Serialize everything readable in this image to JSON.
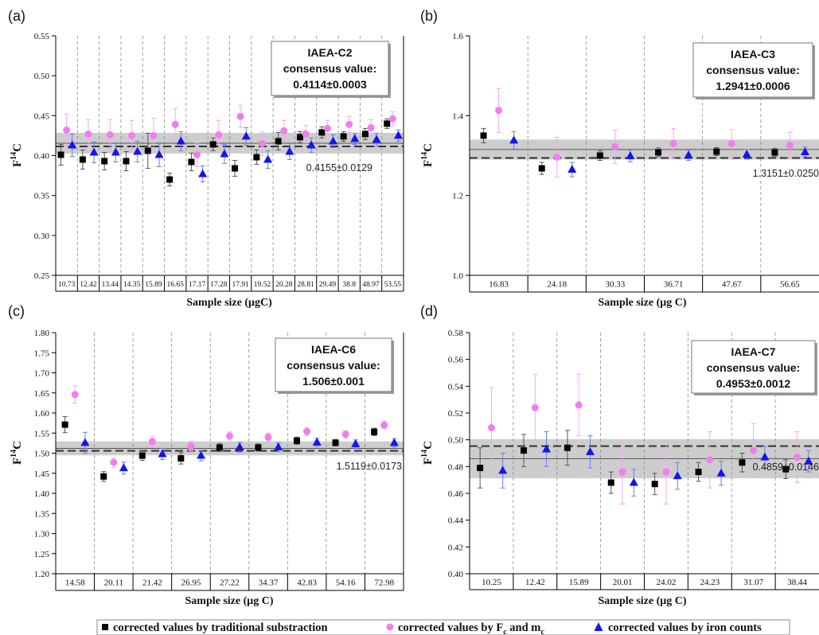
{
  "legend": {
    "items": [
      {
        "label": "corrected values by traditional substraction",
        "marker": "square",
        "color": "#000000"
      },
      {
        "label_main": "corrected values by F",
        "label_sub1": "c",
        "label_mid": " and m",
        "label_sub2": "c",
        "marker": "circle",
        "color": "#f07ef0"
      },
      {
        "label": "corrected values by iron counts",
        "marker": "triangle",
        "color": "#1414ee"
      }
    ]
  },
  "colors": {
    "traditional": "#000000",
    "fc_mc": "#f07ef0",
    "iron": "#1414ee",
    "band": "#c4c4c4",
    "divider": "#8a8a8a"
  },
  "chart_data": [
    {
      "panel": "(a)",
      "type": "scatter",
      "ylabel": "F14C",
      "ylabel_main": "F",
      "ylabel_sup": "14",
      "ylabel_tail": "C",
      "xlabel": "Sample size (μgC)",
      "ylim": [
        0.25,
        0.55
      ],
      "yticks": [
        "0.25",
        "0.30",
        "0.35",
        "0.40",
        "0.45",
        "0.50",
        "0.55"
      ],
      "ytick_values": [
        0.25,
        0.3,
        0.35,
        0.4,
        0.45,
        0.5,
        0.55
      ],
      "categories": [
        "10.73",
        "12.42",
        "13.44",
        "14.35",
        "15.89",
        "16.65",
        "17.17",
        "17.28",
        "17.91",
        "19.52",
        "20.28",
        "28.81",
        "29.49",
        "38.8",
        "48.97",
        "53.55"
      ],
      "box_title": "IAEA-C2",
      "box_line2": "consensus value:",
      "box_value": "0.4114±0.0003",
      "mean_label": "0.4155±0.0129",
      "consensus_value": 0.4114,
      "mean": 0.4155,
      "band": [
        0.4026,
        0.4284
      ],
      "series": [
        {
          "name": "corrected values by traditional substraction",
          "marker": "square",
          "values": [
            0.401,
            0.395,
            0.393,
            0.393,
            0.406,
            0.37,
            0.392,
            0.414,
            0.384,
            0.398,
            0.418,
            0.423,
            0.429,
            0.424,
            0.427,
            0.44
          ],
          "errors": [
            0.013,
            0.012,
            0.011,
            0.012,
            0.022,
            0.008,
            0.011,
            0.008,
            0.01,
            0.009,
            0.011,
            0.007,
            0.007,
            0.006,
            0.007,
            0.006
          ]
        },
        {
          "name": "corrected values by Fc and mc",
          "marker": "circle",
          "values": [
            0.432,
            0.427,
            0.426,
            0.425,
            0.425,
            0.439,
            0.401,
            0.426,
            0.449,
            0.415,
            0.431,
            0.427,
            0.434,
            0.439,
            0.435,
            0.446
          ],
          "errors": [
            0.02,
            0.018,
            0.019,
            0.019,
            0.022,
            0.02,
            0.015,
            0.018,
            0.014,
            0.015,
            0.013,
            0.011,
            0.01,
            0.01,
            0.01,
            0.009
          ]
        },
        {
          "name": "corrected values by iron counts",
          "marker": "triangle",
          "values": [
            0.413,
            0.404,
            0.404,
            0.405,
            0.401,
            0.418,
            0.377,
            0.402,
            0.424,
            0.395,
            0.405,
            0.413,
            0.418,
            0.421,
            0.42,
            0.425
          ],
          "errors": [
            0.014,
            0.013,
            0.012,
            0.013,
            0.015,
            0.012,
            0.01,
            0.012,
            0.011,
            0.011,
            0.01,
            0.009,
            0.008,
            0.007,
            0.008,
            0.007
          ]
        }
      ]
    },
    {
      "panel": "(b)",
      "type": "scatter",
      "ylabel": "F14C",
      "ylabel_main": "F",
      "ylabel_sup": "14",
      "ylabel_tail": "C",
      "xlabel": "Sample size (μg C)",
      "ylim": [
        1.0,
        1.6
      ],
      "yticks": [
        "1.0",
        "1.2",
        "1.4",
        "1.6"
      ],
      "ytick_values": [
        1.0,
        1.2,
        1.4,
        1.6
      ],
      "categories": [
        "16.83",
        "24.18",
        "30.33",
        "36.71",
        "47.67",
        "56.65"
      ],
      "box_title": "IAEA-C3",
      "box_line2": "consensus value:",
      "box_value": "1.2941±0.0006",
      "mean_label": "1.3151±0.0250",
      "consensus_value": 1.2941,
      "mean": 1.3151,
      "band": [
        1.2901,
        1.3401
      ],
      "series": [
        {
          "name": "corrected values by traditional substraction",
          "marker": "square",
          "values": [
            1.35,
            1.268,
            1.3,
            1.308,
            1.31,
            1.308
          ],
          "errors": [
            0.018,
            0.015,
            0.012,
            0.011,
            0.01,
            0.01
          ]
        },
        {
          "name": "corrected values by Fc and mc",
          "marker": "circle",
          "values": [
            1.413,
            1.296,
            1.322,
            1.33,
            1.33,
            1.326
          ],
          "errors": [
            0.055,
            0.05,
            0.042,
            0.038,
            0.035,
            0.032
          ]
        },
        {
          "name": "corrected values by iron counts",
          "marker": "triangle",
          "values": [
            1.338,
            1.265,
            1.299,
            1.301,
            1.303,
            1.309
          ],
          "errors": [
            0.022,
            0.018,
            0.015,
            0.013,
            0.012,
            0.012
          ]
        }
      ]
    },
    {
      "panel": "(c)",
      "type": "scatter",
      "ylabel": "F14C",
      "ylabel_main": "F",
      "ylabel_sup": "14",
      "ylabel_tail": "C",
      "xlabel": "Sample size (μg C)",
      "ylim": [
        1.2,
        1.8
      ],
      "yticks": [
        "1.20",
        "1.25",
        "1.30",
        "1.35",
        "1.40",
        "1.45",
        "1.50",
        "1.55",
        "1.60",
        "1.65",
        "1.70",
        "1.75",
        "1.80"
      ],
      "ytick_values": [
        1.2,
        1.25,
        1.3,
        1.35,
        1.4,
        1.45,
        1.5,
        1.55,
        1.6,
        1.65,
        1.7,
        1.75,
        1.8
      ],
      "categories": [
        "14.58",
        "20.11",
        "21.42",
        "26.95",
        "27.22",
        "34.37",
        "42.83",
        "54.16",
        "72.98"
      ],
      "box_title": "IAEA-C6",
      "box_line2": "consensus value:",
      "box_value": "1.506±0.001",
      "mean_label": "1.5119±0.0173",
      "consensus_value": 1.506,
      "mean": 1.5119,
      "band": [
        1.4946,
        1.5292
      ],
      "series": [
        {
          "name": "corrected values by traditional substraction",
          "marker": "square",
          "values": [
            1.571,
            1.442,
            1.494,
            1.487,
            1.514,
            1.514,
            1.531,
            1.526,
            1.553
          ],
          "errors": [
            0.02,
            0.012,
            0.012,
            0.014,
            0.01,
            0.009,
            0.009,
            0.008,
            0.009
          ]
        },
        {
          "name": "corrected values by Fc and mc",
          "marker": "circle",
          "values": [
            1.646,
            1.477,
            1.529,
            1.518,
            1.543,
            1.54,
            1.554,
            1.547,
            1.57
          ],
          "errors": [
            0.022,
            0.012,
            0.013,
            0.012,
            0.01,
            0.01,
            0.01,
            0.009,
            0.01
          ]
        },
        {
          "name": "corrected values by iron counts",
          "marker": "triangle",
          "values": [
            1.526,
            1.463,
            1.498,
            1.494,
            1.515,
            1.515,
            1.527,
            1.523,
            1.526
          ],
          "errors": [
            0.026,
            0.015,
            0.014,
            0.013,
            0.012,
            0.011,
            0.01,
            0.01,
            0.01
          ]
        }
      ]
    },
    {
      "panel": "(d)",
      "type": "scatter",
      "ylabel": "F14C",
      "ylabel_main": "F",
      "ylabel_sup": "14",
      "ylabel_tail": "C",
      "xlabel": "Sample size (μg C)",
      "ylim": [
        0.4,
        0.58
      ],
      "yticks": [
        "0.40",
        "0.42",
        "0.44",
        "0.46",
        "0.48",
        "0.50",
        "0.52",
        "0.54",
        "0.56",
        "0.58"
      ],
      "ytick_values": [
        0.4,
        0.42,
        0.44,
        0.46,
        0.48,
        0.5,
        0.52,
        0.54,
        0.56,
        0.58
      ],
      "categories": [
        "10.25",
        "12.42",
        "15.89",
        "20.01",
        "24.02",
        "24.23",
        "31.07",
        "38.44"
      ],
      "box_title": "IAEA-C7",
      "box_line2": "consensus value:",
      "box_value": "0.4953±0.0012",
      "mean_label": "0.4859±0.0146",
      "consensus_value": 0.4953,
      "mean": 0.4859,
      "band": [
        0.4713,
        0.5005
      ],
      "series": [
        {
          "name": "corrected values by traditional substraction",
          "marker": "square",
          "values": [
            0.479,
            0.492,
            0.494,
            0.468,
            0.467,
            0.476,
            0.483,
            0.478
          ],
          "errors": [
            0.015,
            0.012,
            0.013,
            0.008,
            0.008,
            0.007,
            0.007,
            0.007
          ]
        },
        {
          "name": "corrected values by Fc and mc",
          "marker": "circle",
          "values": [
            0.509,
            0.524,
            0.526,
            0.476,
            0.476,
            0.485,
            0.492,
            0.487
          ],
          "errors": [
            0.03,
            0.025,
            0.023,
            0.024,
            0.024,
            0.021,
            0.02,
            0.019
          ]
        },
        {
          "name": "corrected values by iron counts",
          "marker": "triangle",
          "values": [
            0.477,
            0.493,
            0.491,
            0.468,
            0.473,
            0.475,
            0.487,
            0.484
          ],
          "errors": [
            0.013,
            0.013,
            0.012,
            0.01,
            0.01,
            0.009,
            0.008,
            0.008
          ]
        }
      ]
    }
  ]
}
